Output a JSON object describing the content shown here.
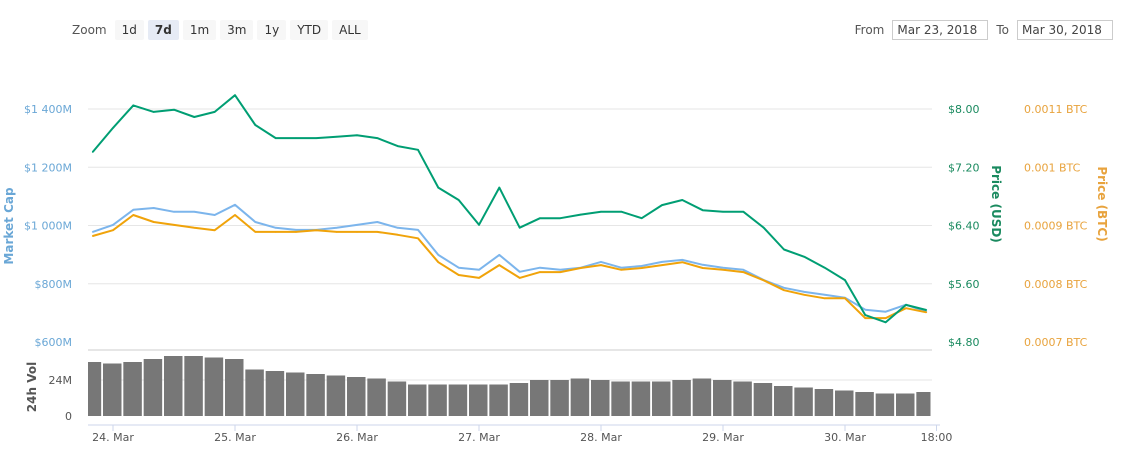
{
  "zoom": {
    "label": "Zoom",
    "buttons": [
      "1d",
      "7d",
      "1m",
      "3m",
      "1y",
      "YTD",
      "ALL"
    ],
    "active": "7d"
  },
  "range": {
    "from_label": "From",
    "from_value": "Mar 23, 2018",
    "to_label": "To",
    "to_value": "Mar 30, 2018"
  },
  "colors": {
    "market_cap": "#7cb5ec",
    "price_usd": "#009e73",
    "price_btc": "#f0a30a",
    "volume": "#777777",
    "mc_axis": "#6aa7d6",
    "usd_axis": "#1a8a5f",
    "btc_axis": "#e8a33d"
  },
  "chart_data": {
    "type": "line",
    "times": [
      "2018-03-23 20:00",
      "2018-03-24 00:00",
      "2018-03-24 04:00",
      "2018-03-24 08:00",
      "2018-03-24 12:00",
      "2018-03-24 16:00",
      "2018-03-24 20:00",
      "2018-03-25 00:00",
      "2018-03-25 04:00",
      "2018-03-25 08:00",
      "2018-03-25 12:00",
      "2018-03-25 16:00",
      "2018-03-25 20:00",
      "2018-03-26 00:00",
      "2018-03-26 04:00",
      "2018-03-26 08:00",
      "2018-03-26 12:00",
      "2018-03-26 16:00",
      "2018-03-26 20:00",
      "2018-03-27 00:00",
      "2018-03-27 04:00",
      "2018-03-27 08:00",
      "2018-03-27 12:00",
      "2018-03-27 16:00",
      "2018-03-27 20:00",
      "2018-03-28 00:00",
      "2018-03-28 04:00",
      "2018-03-28 08:00",
      "2018-03-28 12:00",
      "2018-03-28 16:00",
      "2018-03-28 20:00",
      "2018-03-29 00:00",
      "2018-03-29 04:00",
      "2018-03-29 08:00",
      "2018-03-29 12:00",
      "2018-03-29 16:00",
      "2018-03-29 20:00",
      "2018-03-30 00:00",
      "2018-03-30 04:00",
      "2018-03-30 08:00",
      "2018-03-30 12:00",
      "2018-03-30 16:00"
    ],
    "series": [
      {
        "key": "market_cap",
        "values": [
          978,
          1002,
          1054,
          1060,
          1047,
          1047,
          1036,
          1071,
          1012,
          992,
          985,
          985,
          992,
          1002,
          1012,
          992,
          985,
          899,
          855,
          848,
          899,
          841,
          855,
          848,
          855,
          875,
          855,
          861,
          875,
          882,
          865,
          855,
          848,
          813,
          786,
          772,
          762,
          752,
          711,
          704,
          728,
          704
        ]
      },
      {
        "key": "price_usd",
        "values": [
          7.41,
          7.74,
          8.05,
          7.96,
          7.99,
          7.89,
          7.96,
          8.19,
          7.78,
          7.6,
          7.6,
          7.6,
          7.62,
          7.64,
          7.6,
          7.49,
          7.44,
          6.92,
          6.75,
          6.41,
          6.92,
          6.37,
          6.5,
          6.5,
          6.55,
          6.59,
          6.59,
          6.5,
          6.68,
          6.75,
          6.61,
          6.59,
          6.59,
          6.37,
          6.07,
          5.97,
          5.82,
          5.65,
          5.17,
          5.07,
          5.31,
          5.24
        ]
      },
      {
        "key": "price_btc",
        "values": [
          0.000882,
          0.000892,
          0.000918,
          0.000906,
          0.000901,
          0.000896,
          0.000892,
          0.000918,
          0.000889,
          0.000889,
          0.000889,
          0.000892,
          0.000889,
          0.000889,
          0.000889,
          0.000884,
          0.000878,
          0.000837,
          0.000815,
          0.00081,
          0.000832,
          0.00081,
          0.00082,
          0.00082,
          0.000827,
          0.000832,
          0.000824,
          0.000827,
          0.000832,
          0.000837,
          0.000827,
          0.000824,
          0.00082,
          0.000806,
          0.000789,
          0.000781,
          0.000775,
          0.000775,
          0.000741,
          0.000741,
          0.000758,
          0.000751
        ]
      },
      {
        "key": "volume",
        "values": [
          36,
          35,
          36,
          38,
          40,
          40,
          39,
          38,
          31,
          30,
          29,
          28,
          27,
          26,
          25,
          23,
          21,
          21,
          21,
          21,
          21,
          22,
          24,
          24,
          25,
          24,
          23,
          23,
          23,
          24,
          25,
          24,
          23,
          22,
          20,
          19,
          18,
          17,
          16,
          15,
          15,
          16
        ]
      }
    ],
    "axes": {
      "market_cap": {
        "title": "Market Cap",
        "ylim": [
          600,
          1400
        ],
        "ticks": [
          "$1 400M",
          "$1 200M",
          "$1 000M",
          "$800M",
          "$600M"
        ]
      },
      "price_usd": {
        "title": "Price (USD)",
        "ylim": [
          4.8,
          8.0
        ],
        "ticks": [
          "$8.00",
          "$7.20",
          "$6.40",
          "$5.60",
          "$4.80"
        ]
      },
      "price_btc": {
        "title": "Price (BTC)",
        "ylim": [
          0.0007,
          0.0011
        ],
        "ticks": [
          "0.0011 BTC",
          "0.001 BTC",
          "0.0009 BTC",
          "0.0008 BTC",
          "0.0007 BTC"
        ]
      },
      "volume": {
        "title": "24h Vol",
        "ylim": [
          0,
          24
        ],
        "ticks": [
          "24M",
          "0"
        ]
      },
      "x": {
        "ticks": [
          "24. Mar",
          "25. Mar",
          "26. Mar",
          "27. Mar",
          "28. Mar",
          "29. Mar",
          "30. Mar",
          "18:00"
        ],
        "tick_times": [
          "2018-03-24 00:00",
          "2018-03-25 00:00",
          "2018-03-26 00:00",
          "2018-03-27 00:00",
          "2018-03-28 00:00",
          "2018-03-29 00:00",
          "2018-03-30 00:00",
          "2018-03-30 18:00"
        ]
      }
    },
    "grid": true
  }
}
